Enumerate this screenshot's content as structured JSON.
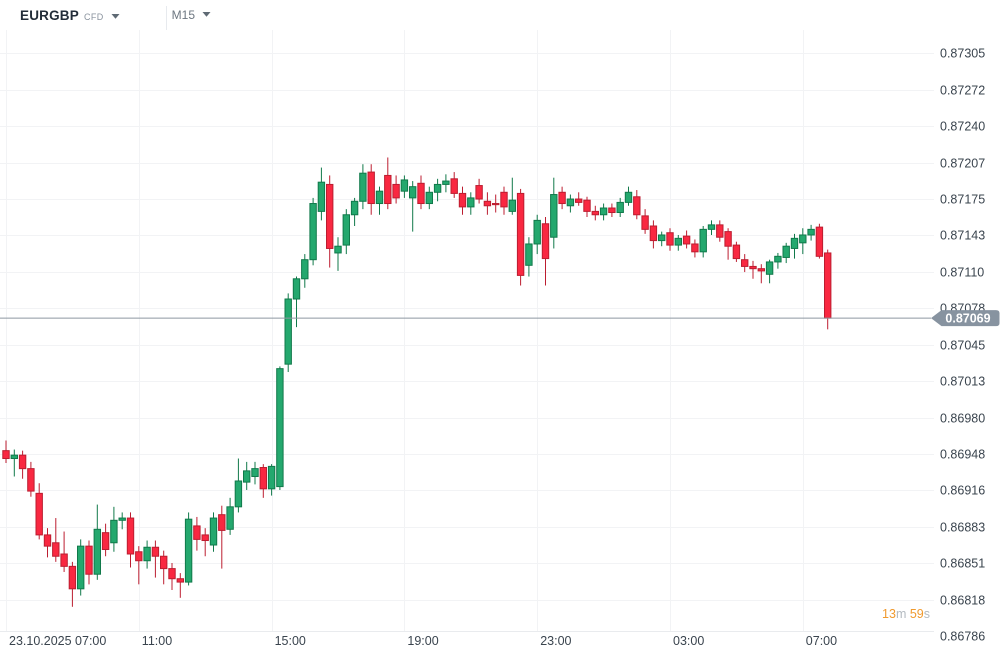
{
  "header": {
    "symbol": "EURGBP",
    "instrument_type": "CFD",
    "timeframe": "M15"
  },
  "current_price_label": "0.87069",
  "countdown": {
    "minutes": "13",
    "minutes_unit": "m",
    "seconds": "59",
    "seconds_unit": "s"
  },
  "colors": {
    "up_body": "#24a86e",
    "up_border": "#10794a",
    "down_body": "#f92841",
    "down_border": "#bc1d30",
    "gridline": "#f2f3f5",
    "plot_border": "#e9ebee",
    "axis_text": "#3a444e",
    "price_line": "#8d98a1",
    "price_badge_bg": "#8793a0",
    "price_badge_text": "#ffffff",
    "countdown_number": "#f09a2e",
    "countdown_unit": "#b3bac0"
  },
  "chart_data": {
    "type": "candlestick",
    "title": "EURGBP CFD M15",
    "instrument": "EURGBP",
    "timeframe_minutes": 15,
    "session_start_date": "23.10.2025",
    "current_price": 0.87069,
    "price_axis_ticks": [
      "0.87305",
      "0.87272",
      "0.87240",
      "0.87207",
      "0.87175",
      "0.87143",
      "0.87110",
      "0.87078",
      "0.87045",
      "0.87013",
      "0.86980",
      "0.86948",
      "0.86916",
      "0.86883",
      "0.86851",
      "0.86818",
      "0.86786"
    ],
    "time_axis_ticks": [
      {
        "candle_index": 0,
        "label": "23.10.2025  07:00"
      },
      {
        "candle_index": 16,
        "label": "11:00"
      },
      {
        "candle_index": 32,
        "label": "15:00"
      },
      {
        "candle_index": 48,
        "label": "19:00"
      },
      {
        "candle_index": 64,
        "label": "23:00"
      },
      {
        "candle_index": 80,
        "label": "03:00"
      },
      {
        "candle_index": 96,
        "label": "07:00"
      }
    ],
    "candles_format": [
      "time",
      "open",
      "high",
      "low",
      "close"
    ],
    "candles": [
      [
        "07:00",
        0.86951,
        0.8696,
        0.8694,
        0.86944
      ],
      [
        "07:15",
        0.86944,
        0.86952,
        0.86928,
        0.86947
      ],
      [
        "07:30",
        0.86947,
        0.86951,
        0.86926,
        0.86935
      ],
      [
        "07:45",
        0.86935,
        0.86941,
        0.8691,
        0.86915
      ],
      [
        "08:00",
        0.86913,
        0.86922,
        0.86872,
        0.86876
      ],
      [
        "08:15",
        0.86876,
        0.86882,
        0.86856,
        0.86866
      ],
      [
        "08:30",
        0.86869,
        0.86891,
        0.86852,
        0.86857
      ],
      [
        "08:45",
        0.86859,
        0.86879,
        0.86843,
        0.86848
      ],
      [
        "09:00",
        0.86848,
        0.86852,
        0.86812,
        0.86828
      ],
      [
        "09:15",
        0.86828,
        0.86872,
        0.86822,
        0.86866
      ],
      [
        "09:30",
        0.86866,
        0.86871,
        0.86832,
        0.86841
      ],
      [
        "09:45",
        0.86841,
        0.86903,
        0.86836,
        0.86881
      ],
      [
        "10:00",
        0.86878,
        0.86886,
        0.86857,
        0.86863
      ],
      [
        "10:15",
        0.86869,
        0.86901,
        0.86861,
        0.86889
      ],
      [
        "10:30",
        0.86889,
        0.86896,
        0.86881,
        0.86891
      ],
      [
        "10:45",
        0.86891,
        0.86896,
        0.86847,
        0.86859
      ],
      [
        "11:00",
        0.86861,
        0.86866,
        0.86832,
        0.86853
      ],
      [
        "11:15",
        0.86853,
        0.86871,
        0.86846,
        0.86865
      ],
      [
        "11:30",
        0.86865,
        0.86871,
        0.86838,
        0.86857
      ],
      [
        "11:45",
        0.86857,
        0.86862,
        0.86832,
        0.86846
      ],
      [
        "12:00",
        0.86846,
        0.86851,
        0.86827,
        0.86837
      ],
      [
        "12:15",
        0.86837,
        0.86842,
        0.8682,
        0.86834
      ],
      [
        "12:30",
        0.86834,
        0.86896,
        0.86831,
        0.8689
      ],
      [
        "12:45",
        0.86884,
        0.86892,
        0.86862,
        0.86872
      ],
      [
        "13:00",
        0.86876,
        0.86882,
        0.86857,
        0.86871
      ],
      [
        "13:15",
        0.86867,
        0.86896,
        0.86861,
        0.86891
      ],
      [
        "13:30",
        0.86894,
        0.86902,
        0.86846,
        0.8688
      ],
      [
        "13:45",
        0.86881,
        0.86909,
        0.86876,
        0.86901
      ],
      [
        "14:00",
        0.86901,
        0.86944,
        0.86896,
        0.86924
      ],
      [
        "14:15",
        0.86923,
        0.86941,
        0.86916,
        0.86933
      ],
      [
        "14:30",
        0.86928,
        0.86941,
        0.86921,
        0.86935
      ],
      [
        "14:45",
        0.86936,
        0.86939,
        0.86909,
        0.86917
      ],
      [
        "15:00",
        0.86917,
        0.86939,
        0.86911,
        0.86937
      ],
      [
        "15:15",
        0.86919,
        0.87026,
        0.86916,
        0.87024
      ],
      [
        "15:30",
        0.87028,
        0.87091,
        0.87021,
        0.87086
      ],
      [
        "15:45",
        0.87086,
        0.87106,
        0.87061,
        0.87104
      ],
      [
        "16:00",
        0.87104,
        0.87126,
        0.87096,
        0.87121
      ],
      [
        "16:15",
        0.87121,
        0.87176,
        0.87116,
        0.87171
      ],
      [
        "16:30",
        0.87164,
        0.87203,
        0.87156,
        0.8719
      ],
      [
        "16:45",
        0.87188,
        0.87196,
        0.87114,
        0.87131
      ],
      [
        "17:00",
        0.87127,
        0.87141,
        0.87111,
        0.87133
      ],
      [
        "17:15",
        0.87134,
        0.87166,
        0.87126,
        0.87161
      ],
      [
        "17:30",
        0.87161,
        0.87176,
        0.87151,
        0.87173
      ],
      [
        "17:45",
        0.87173,
        0.87206,
        0.87166,
        0.87198
      ],
      [
        "18:00",
        0.87199,
        0.87206,
        0.87161,
        0.87171
      ],
      [
        "18:15",
        0.87171,
        0.87186,
        0.87161,
        0.87182
      ],
      [
        "18:30",
        0.87196,
        0.87212,
        0.87166,
        0.87171
      ],
      [
        "18:45",
        0.87188,
        0.87196,
        0.87171,
        0.87176
      ],
      [
        "19:00",
        0.87182,
        0.87196,
        0.87176,
        0.87192
      ],
      [
        "19:15",
        0.87176,
        0.87191,
        0.87146,
        0.87186
      ],
      [
        "19:30",
        0.87189,
        0.87196,
        0.87166,
        0.87171
      ],
      [
        "19:45",
        0.87171,
        0.87186,
        0.87166,
        0.87181
      ],
      [
        "20:00",
        0.87181,
        0.87193,
        0.87173,
        0.87188
      ],
      [
        "20:15",
        0.87188,
        0.87197,
        0.87181,
        0.87191
      ],
      [
        "20:30",
        0.87193,
        0.87199,
        0.87176,
        0.8718
      ],
      [
        "20:45",
        0.8718,
        0.87186,
        0.87161,
        0.87168
      ],
      [
        "21:00",
        0.87168,
        0.87181,
        0.87161,
        0.87176
      ],
      [
        "21:15",
        0.87187,
        0.87193,
        0.87171,
        0.87175
      ],
      [
        "21:30",
        0.87173,
        0.87181,
        0.87161,
        0.87169
      ],
      [
        "21:45",
        0.87171,
        0.87179,
        0.87163,
        0.8717
      ],
      [
        "22:00",
        0.87181,
        0.87186,
        0.87161,
        0.87168
      ],
      [
        "22:15",
        0.87164,
        0.87194,
        0.87161,
        0.87174
      ],
      [
        "22:30",
        0.8718,
        0.87184,
        0.87098,
        0.87107
      ],
      [
        "22:45",
        0.87116,
        0.87141,
        0.87106,
        0.87135
      ],
      [
        "23:00",
        0.87135,
        0.87161,
        0.87126,
        0.87156
      ],
      [
        "23:15",
        0.87153,
        0.87159,
        0.87098,
        0.87122
      ],
      [
        "23:30",
        0.87141,
        0.87194,
        0.87131,
        0.87179
      ],
      [
        "23:45",
        0.87181,
        0.87186,
        0.87166,
        0.87171
      ],
      [
        "00:00",
        0.87169,
        0.87179,
        0.87163,
        0.87175
      ],
      [
        "00:15",
        0.87175,
        0.87181,
        0.87169,
        0.87172
      ],
      [
        "00:30",
        0.87174,
        0.87177,
        0.87159,
        0.87164
      ],
      [
        "00:45",
        0.87164,
        0.87169,
        0.87156,
        0.87161
      ],
      [
        "01:00",
        0.87161,
        0.87171,
        0.87156,
        0.87167
      ],
      [
        "01:15",
        0.87167,
        0.87171,
        0.87159,
        0.87163
      ],
      [
        "01:30",
        0.87163,
        0.87176,
        0.87159,
        0.87172
      ],
      [
        "01:45",
        0.87172,
        0.87186,
        0.87169,
        0.87181
      ],
      [
        "02:00",
        0.87177,
        0.87183,
        0.87157,
        0.87161
      ],
      [
        "02:15",
        0.8716,
        0.87166,
        0.87144,
        0.87148
      ],
      [
        "02:30",
        0.87151,
        0.87156,
        0.87131,
        0.87138
      ],
      [
        "02:45",
        0.87138,
        0.87146,
        0.87133,
        0.87143
      ],
      [
        "03:00",
        0.87145,
        0.87149,
        0.87129,
        0.87134
      ],
      [
        "03:15",
        0.87134,
        0.87143,
        0.87129,
        0.8714
      ],
      [
        "03:30",
        0.87142,
        0.87147,
        0.87131,
        0.87135
      ],
      [
        "03:45",
        0.87135,
        0.87139,
        0.87123,
        0.87128
      ],
      [
        "04:00",
        0.87128,
        0.87151,
        0.87123,
        0.87148
      ],
      [
        "04:15",
        0.87148,
        0.87156,
        0.87143,
        0.87152
      ],
      [
        "04:30",
        0.87152,
        0.87156,
        0.87137,
        0.87141
      ],
      [
        "04:45",
        0.87146,
        0.87149,
        0.87121,
        0.87133
      ],
      [
        "05:00",
        0.87134,
        0.87137,
        0.87119,
        0.87122
      ],
      [
        "05:15",
        0.87121,
        0.87126,
        0.8711,
        0.87115
      ],
      [
        "05:30",
        0.87115,
        0.8712,
        0.87104,
        0.87113
      ],
      [
        "05:45",
        0.87113,
        0.87117,
        0.871,
        0.87111
      ],
      [
        "06:00",
        0.87108,
        0.87121,
        0.871,
        0.87119
      ],
      [
        "06:15",
        0.87119,
        0.87127,
        0.87113,
        0.87124
      ],
      [
        "06:30",
        0.87123,
        0.87136,
        0.87118,
        0.87133
      ],
      [
        "06:45",
        0.87131,
        0.87144,
        0.87122,
        0.8714
      ],
      [
        "07:00",
        0.87136,
        0.87149,
        0.87126,
        0.87143
      ],
      [
        "07:15",
        0.87143,
        0.87152,
        0.87138,
        0.87148
      ],
      [
        "07:30",
        0.8715,
        0.87153,
        0.87122,
        0.87124
      ],
      [
        "07:45",
        0.87127,
        0.8713,
        0.87059,
        0.87069
      ]
    ],
    "legend_position": "none",
    "grid": true,
    "y_range": [
      0.86786,
      0.87305
    ]
  }
}
